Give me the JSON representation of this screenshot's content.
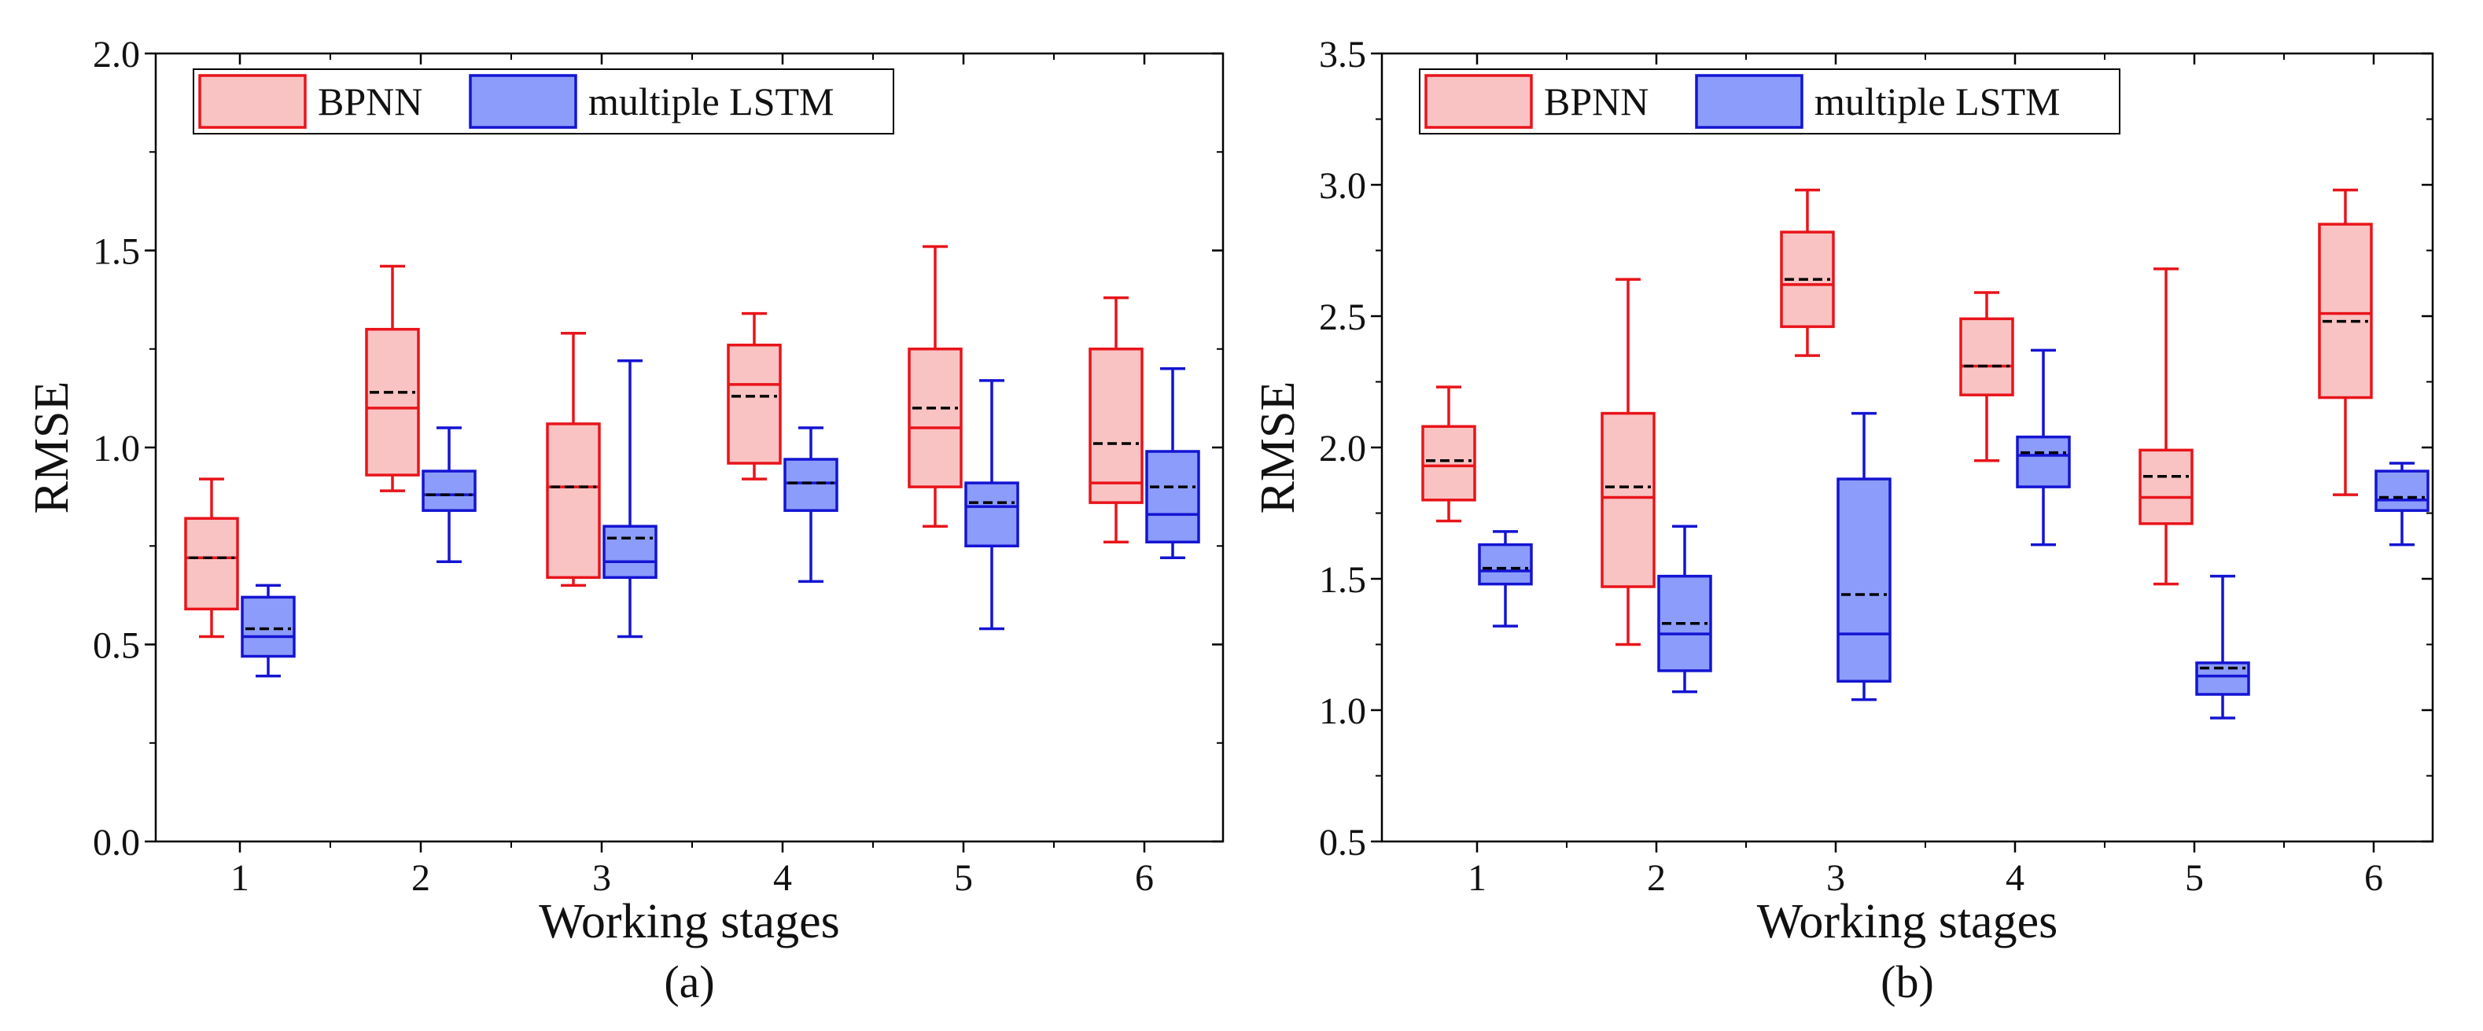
{
  "chart_data": [
    {
      "type": "box",
      "panel_label": "(a)",
      "xlabel": "Working stages",
      "ylabel": "RMSE",
      "ylim": [
        0.0,
        2.0
      ],
      "yticks": [
        "0.0",
        "0.5",
        "1.0",
        "1.5",
        "2.0"
      ],
      "categories": [
        "1",
        "2",
        "3",
        "4",
        "5",
        "6"
      ],
      "legend": {
        "position": "top-left",
        "entries": [
          "BPNN",
          "multiple LSTM"
        ]
      },
      "series": [
        {
          "name": "BPNN",
          "fill": "#f9c3c3",
          "stroke": "#e8141a",
          "boxes": [
            {
              "min": 0.52,
              "q1": 0.59,
              "median": 0.72,
              "q3": 0.82,
              "max": 0.92,
              "mean": 0.72
            },
            {
              "min": 0.89,
              "q1": 0.93,
              "median": 1.1,
              "q3": 1.3,
              "max": 1.46,
              "mean": 1.14
            },
            {
              "min": 0.65,
              "q1": 0.67,
              "median": 0.9,
              "q3": 1.06,
              "max": 1.29,
              "mean": 0.9
            },
            {
              "min": 0.92,
              "q1": 0.96,
              "median": 1.16,
              "q3": 1.26,
              "max": 1.34,
              "mean": 1.13
            },
            {
              "min": 0.8,
              "q1": 0.9,
              "median": 1.05,
              "q3": 1.25,
              "max": 1.51,
              "mean": 1.1
            },
            {
              "min": 0.76,
              "q1": 0.86,
              "median": 0.91,
              "q3": 1.25,
              "max": 1.38,
              "mean": 1.01
            }
          ]
        },
        {
          "name": "multiple LSTM",
          "fill": "#8c9cfa",
          "stroke": "#1414d2",
          "boxes": [
            {
              "min": 0.42,
              "q1": 0.47,
              "median": 0.52,
              "q3": 0.62,
              "max": 0.65,
              "mean": 0.54
            },
            {
              "min": 0.71,
              "q1": 0.84,
              "median": 0.88,
              "q3": 0.94,
              "max": 1.05,
              "mean": 0.88
            },
            {
              "min": 0.52,
              "q1": 0.67,
              "median": 0.71,
              "q3": 0.8,
              "max": 1.22,
              "mean": 0.77
            },
            {
              "min": 0.66,
              "q1": 0.84,
              "median": 0.91,
              "q3": 0.97,
              "max": 1.05,
              "mean": 0.91
            },
            {
              "min": 0.54,
              "q1": 0.75,
              "median": 0.85,
              "q3": 0.91,
              "max": 1.17,
              "mean": 0.86
            },
            {
              "min": 0.72,
              "q1": 0.76,
              "median": 0.83,
              "q3": 0.99,
              "max": 1.2,
              "mean": 0.9
            }
          ]
        }
      ]
    },
    {
      "type": "box",
      "panel_label": "(b)",
      "xlabel": "Working stages",
      "ylabel": "RMSE",
      "ylim": [
        0.5,
        3.5
      ],
      "yticks": [
        "0.5",
        "1.0",
        "1.5",
        "2.0",
        "2.5",
        "3.0",
        "3.5"
      ],
      "categories": [
        "1",
        "2",
        "3",
        "4",
        "5",
        "6"
      ],
      "legend": {
        "position": "top-left",
        "entries": [
          "BPNN",
          "multiple LSTM"
        ]
      },
      "series": [
        {
          "name": "BPNN",
          "fill": "#f9c3c3",
          "stroke": "#e8141a",
          "boxes": [
            {
              "min": 1.72,
              "q1": 1.8,
              "median": 1.93,
              "q3": 2.08,
              "max": 2.23,
              "mean": 1.95
            },
            {
              "min": 1.25,
              "q1": 1.47,
              "median": 1.81,
              "q3": 2.13,
              "max": 2.64,
              "mean": 1.85
            },
            {
              "min": 2.35,
              "q1": 2.46,
              "median": 2.62,
              "q3": 2.82,
              "max": 2.98,
              "mean": 2.64
            },
            {
              "min": 1.95,
              "q1": 2.2,
              "median": 2.31,
              "q3": 2.49,
              "max": 2.59,
              "mean": 2.31
            },
            {
              "min": 1.48,
              "q1": 1.71,
              "median": 1.81,
              "q3": 1.99,
              "max": 2.68,
              "mean": 1.89
            },
            {
              "min": 1.82,
              "q1": 2.19,
              "median": 2.51,
              "q3": 2.85,
              "max": 2.98,
              "mean": 2.48
            }
          ]
        },
        {
          "name": "multiple LSTM",
          "fill": "#8c9cfa",
          "stroke": "#1414d2",
          "boxes": [
            {
              "min": 1.32,
              "q1": 1.48,
              "median": 1.53,
              "q3": 1.63,
              "max": 1.68,
              "mean": 1.54
            },
            {
              "min": 1.07,
              "q1": 1.15,
              "median": 1.29,
              "q3": 1.51,
              "max": 1.7,
              "mean": 1.33
            },
            {
              "min": 1.04,
              "q1": 1.11,
              "median": 1.29,
              "q3": 1.88,
              "max": 2.13,
              "mean": 1.44
            },
            {
              "min": 1.63,
              "q1": 1.85,
              "median": 1.97,
              "q3": 2.04,
              "max": 2.37,
              "mean": 1.98
            },
            {
              "min": 0.97,
              "q1": 1.06,
              "median": 1.13,
              "q3": 1.18,
              "max": 1.51,
              "mean": 1.16
            },
            {
              "min": 1.63,
              "q1": 1.76,
              "median": 1.8,
              "q3": 1.91,
              "max": 1.94,
              "mean": 1.81
            }
          ]
        }
      ]
    }
  ]
}
